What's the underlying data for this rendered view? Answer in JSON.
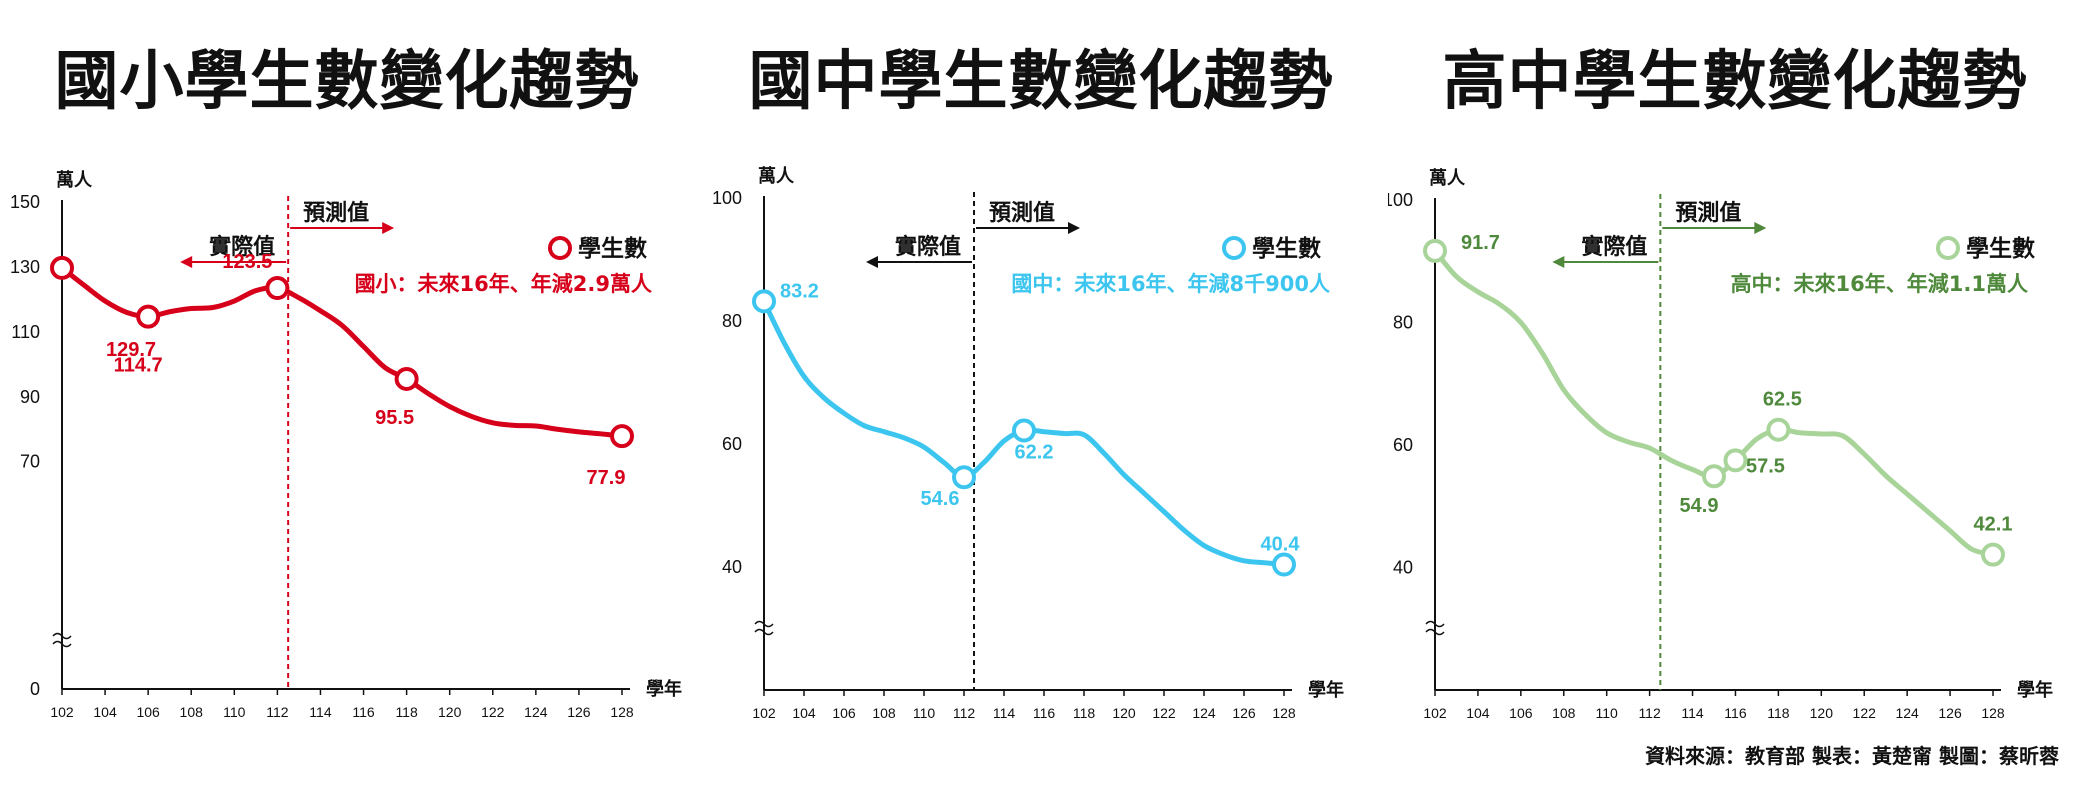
{
  "source": "資料來源：教育部 製表：黃楚甯 製圖：蔡昕蓉",
  "chart_data": [
    {
      "type": "line",
      "title": "國小學生數變化趨勢",
      "ylabel": "萬人",
      "xlabel": "學年",
      "ylim": [
        0,
        150
      ],
      "yticks": [
        0,
        70,
        90,
        110,
        130,
        150
      ],
      "xticks": [
        102,
        104,
        106,
        108,
        110,
        112,
        114,
        116,
        118,
        120,
        122,
        124,
        126,
        128
      ],
      "split_x": 112.5,
      "actual_label": "實際值",
      "forecast_label": "預測值",
      "legend": "學生數",
      "note": "國小：未來16年、年減2.9萬人",
      "color": "#d7001a",
      "series": [
        {
          "x": [
            102,
            103,
            104,
            105,
            106,
            107,
            108,
            109,
            110,
            111,
            112,
            113,
            114,
            115,
            116,
            117,
            118,
            119,
            120,
            121,
            122,
            123,
            124,
            125,
            126,
            127,
            128
          ],
          "y": [
            129.7,
            124.5,
            119.5,
            116.0,
            114.7,
            116.2,
            117.2,
            117.5,
            119.5,
            122.7,
            123.5,
            120.5,
            116.5,
            112.0,
            105.5,
            99.0,
            95.5,
            91.0,
            87.0,
            84.0,
            82.0,
            81.2,
            81.0,
            80.0,
            79.2,
            78.6,
            77.9
          ]
        }
      ],
      "data_labels": [
        {
          "x": 102,
          "y": 129.7,
          "text": "129.7"
        },
        {
          "x": 106,
          "y": 114.7,
          "text": "114.7"
        },
        {
          "x": 112,
          "y": 123.5,
          "text": "123.5"
        },
        {
          "x": 118,
          "y": 95.5,
          "text": "95.5"
        },
        {
          "x": 128,
          "y": 77.9,
          "text": "77.9"
        }
      ]
    },
    {
      "type": "line",
      "title": "國中學生數變化趨勢",
      "ylabel": "萬人",
      "xlabel": "學年",
      "ylim": [
        20,
        100
      ],
      "yticks": [
        40,
        60,
        80,
        100
      ],
      "xticks": [
        102,
        104,
        106,
        108,
        110,
        112,
        114,
        116,
        118,
        120,
        122,
        124,
        126,
        128
      ],
      "split_x": 112.5,
      "actual_label": "實際值",
      "forecast_label": "預測值",
      "legend": "學生數",
      "note": "國中：未來16年、年減8千900人",
      "color": "#3cc6ef",
      "series": [
        {
          "x": [
            102,
            103,
            104,
            105,
            106,
            107,
            108,
            109,
            110,
            111,
            112,
            113,
            114,
            115,
            116,
            117,
            118,
            119,
            120,
            121,
            122,
            123,
            124,
            125,
            126,
            127,
            128
          ],
          "y": [
            83.2,
            76.5,
            71.0,
            67.5,
            65.0,
            63.0,
            62.0,
            61.0,
            59.5,
            57.0,
            54.6,
            57.0,
            60.5,
            62.2,
            62.0,
            61.7,
            61.5,
            58.5,
            55.0,
            52.0,
            49.0,
            46.0,
            43.5,
            42.0,
            41.0,
            40.7,
            40.4
          ]
        }
      ],
      "data_labels": [
        {
          "x": 102,
          "y": 83.2,
          "text": "83.2"
        },
        {
          "x": 112,
          "y": 54.6,
          "text": "54.6"
        },
        {
          "x": 115,
          "y": 62.2,
          "text": "62.2"
        },
        {
          "x": 128,
          "y": 40.4,
          "text": "40.4"
        }
      ]
    },
    {
      "type": "line",
      "title": "高中學生數變化趨勢",
      "ylabel": "萬人",
      "xlabel": "學年",
      "ylim": [
        20,
        100
      ],
      "yticks": [
        40,
        60,
        80,
        100
      ],
      "xticks": [
        102,
        104,
        106,
        108,
        110,
        112,
        114,
        116,
        118,
        120,
        122,
        124,
        126,
        128
      ],
      "split_x": 112.5,
      "actual_label": "實際值",
      "forecast_label": "預測值",
      "legend": "學生數",
      "note": "高中：未來16年、年減1.1萬人",
      "color": "#a8d49a",
      "note_color": "#4f8a3c",
      "arrow_color": "#4f8a3c",
      "series": [
        {
          "x": [
            102,
            103,
            104,
            105,
            106,
            107,
            108,
            109,
            110,
            111,
            112,
            113,
            114,
            115,
            116,
            117,
            118,
            119,
            120,
            121,
            122,
            123,
            124,
            125,
            126,
            127,
            128
          ],
          "y": [
            91.7,
            87.5,
            85.0,
            83.0,
            80.0,
            75.0,
            69.0,
            65.0,
            62.0,
            60.5,
            59.5,
            57.5,
            56.0,
            54.9,
            57.5,
            61.0,
            62.5,
            62.0,
            61.8,
            61.5,
            58.5,
            55.0,
            52.0,
            49.0,
            46.0,
            43.0,
            42.1
          ]
        }
      ],
      "data_labels": [
        {
          "x": 102,
          "y": 91.7,
          "text": "91.7"
        },
        {
          "x": 115,
          "y": 54.9,
          "text": "54.9"
        },
        {
          "x": 116,
          "y": 57.5,
          "text": "57.5"
        },
        {
          "x": 118,
          "y": 62.5,
          "text": "62.5"
        },
        {
          "x": 128,
          "y": 42.1,
          "text": "42.1"
        }
      ]
    }
  ]
}
